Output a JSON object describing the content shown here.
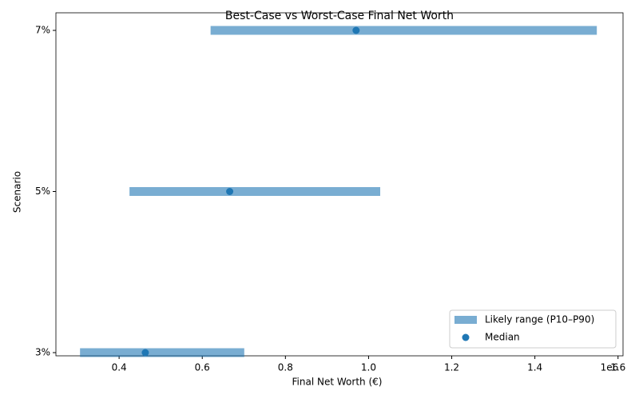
{
  "chart_data": {
    "type": "range",
    "title": "Best-Case vs Worst-Case Final Net Worth",
    "x_label": "Final Net Worth (€)",
    "x_offset_label": "1e6",
    "y_label": "Scenario",
    "categories": [
      "3%",
      "5%",
      "7%"
    ],
    "series": [
      {
        "name": "Likely range (P10–P90)",
        "color": "#1f77b4",
        "opacity": 0.6,
        "low": [
          0.306,
          0.425,
          0.62
        ],
        "high": [
          0.701,
          1.028,
          1.549
        ]
      },
      {
        "name": "Median",
        "color": "#1f77b4",
        "values": [
          0.463,
          0.666,
          0.97
        ]
      }
    ],
    "xlim": [
      0.248,
      1.612
    ],
    "xticks": [
      0.4,
      0.6,
      0.8,
      {
        "value": 1.0,
        "label": "1.0"
      },
      1.2,
      1.4,
      1.6
    ],
    "legend": "lower right"
  }
}
